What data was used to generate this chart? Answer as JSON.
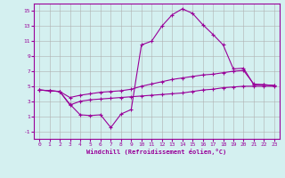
{
  "xlabel": "Windchill (Refroidissement éolien,°C)",
  "x": [
    0,
    1,
    2,
    3,
    4,
    5,
    6,
    7,
    8,
    9,
    10,
    11,
    12,
    13,
    14,
    15,
    16,
    17,
    18,
    19,
    20,
    21,
    22,
    23
  ],
  "y_max": [
    4.5,
    4.4,
    4.3,
    2.6,
    1.2,
    1.1,
    1.2,
    -0.5,
    1.3,
    1.9,
    10.5,
    11.0,
    13.0,
    14.5,
    15.3,
    14.7,
    13.2,
    11.9,
    10.5,
    7.3,
    7.4,
    5.2,
    5.2,
    5.1
  ],
  "y_mean": [
    4.5,
    4.4,
    4.3,
    3.5,
    3.8,
    4.0,
    4.2,
    4.3,
    4.4,
    4.6,
    5.0,
    5.3,
    5.6,
    5.9,
    6.1,
    6.3,
    6.5,
    6.6,
    6.8,
    7.0,
    7.1,
    5.3,
    5.2,
    5.1
  ],
  "y_min": [
    4.5,
    4.4,
    4.3,
    2.5,
    3.0,
    3.2,
    3.3,
    3.4,
    3.5,
    3.6,
    3.7,
    3.8,
    3.9,
    4.0,
    4.1,
    4.3,
    4.5,
    4.6,
    4.8,
    4.9,
    5.0,
    5.0,
    5.0,
    5.0
  ],
  "line_color": "#990099",
  "bg_color": "#d4f0f0",
  "grid_color": "#b0b0b0",
  "ylim": [
    -2,
    16
  ],
  "yticks": [
    -1,
    1,
    3,
    5,
    7,
    9,
    11,
    13,
    15
  ],
  "xlim": [
    -0.5,
    23.5
  ],
  "marker": "+"
}
